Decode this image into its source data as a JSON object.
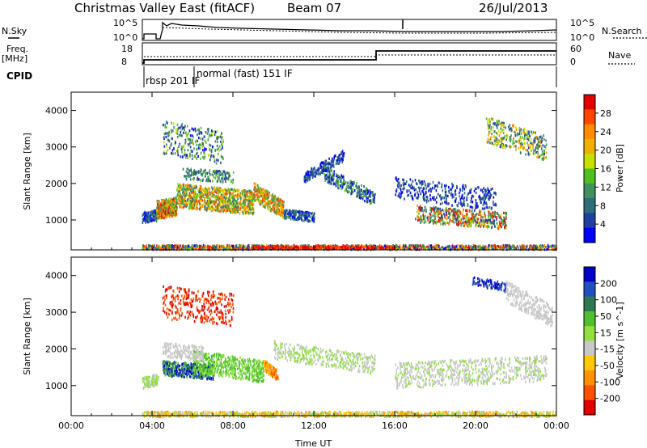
{
  "header": {
    "station": "Christmas Valley East (fitACF)",
    "beam": "Beam 07",
    "date": "26/Jul/2013"
  },
  "status_panels": {
    "nsky_label": "N.Sky",
    "nsearch_label": "N.Search",
    "freq_label": "Freq.",
    "freq_unit": "[MHz]",
    "nave_label": "Nave",
    "cpid_label": "CPID",
    "noise_ticks_left": [
      "10^5",
      "10^0"
    ],
    "noise_ticks_right": [
      "10^5",
      "10^0"
    ],
    "freq_ticks": [
      "18",
      "8"
    ],
    "nave_ticks": [
      "60",
      "0"
    ],
    "cpid_entries": [
      "rbsp 201 IF",
      "normal (fast) 151 IF"
    ]
  },
  "chart_data": [
    {
      "type": "heatmap",
      "name": "Power",
      "ylabel": "Slant Range [km]",
      "ylim": [
        180,
        4500
      ],
      "y_ticks": [
        1000,
        2000,
        3000,
        4000
      ],
      "x_ticks": [
        "00:00",
        "04:00",
        "08:00",
        "12:00",
        "16:00",
        "20:00",
        "00:00"
      ],
      "colorbar": {
        "label": "Power [dB]",
        "ticks": [
          "28",
          "24",
          "20",
          "16",
          "12",
          "8",
          "4"
        ],
        "colors": [
          "#e00000",
          "#ff4500",
          "#ff8c00",
          "#f0b000",
          "#c8e000",
          "#50c020",
          "#409060",
          "#2d6e78",
          "#2040a0",
          "#0000ff"
        ]
      }
    },
    {
      "type": "heatmap",
      "name": "Velocity",
      "ylabel": "Slant Range [km]",
      "xlabel": "Time UT",
      "ylim": [
        180,
        4500
      ],
      "y_ticks": [
        1000,
        2000,
        3000,
        4000
      ],
      "x_ticks": [
        "00:00",
        "04:00",
        "08:00",
        "12:00",
        "16:00",
        "20:00",
        "00:00"
      ],
      "colorbar": {
        "label": "Velocity [m s^-1]",
        "ticks": [
          "200",
          "100",
          "50",
          "15",
          "-15",
          "-50",
          "-100",
          "-200"
        ],
        "colors": [
          "#0000c8",
          "#2050c0",
          "#2d7a50",
          "#50c030",
          "#90e040",
          "#c8c8c8",
          "#ffc800",
          "#ff9000",
          "#ff5000",
          "#e00000"
        ]
      }
    }
  ]
}
